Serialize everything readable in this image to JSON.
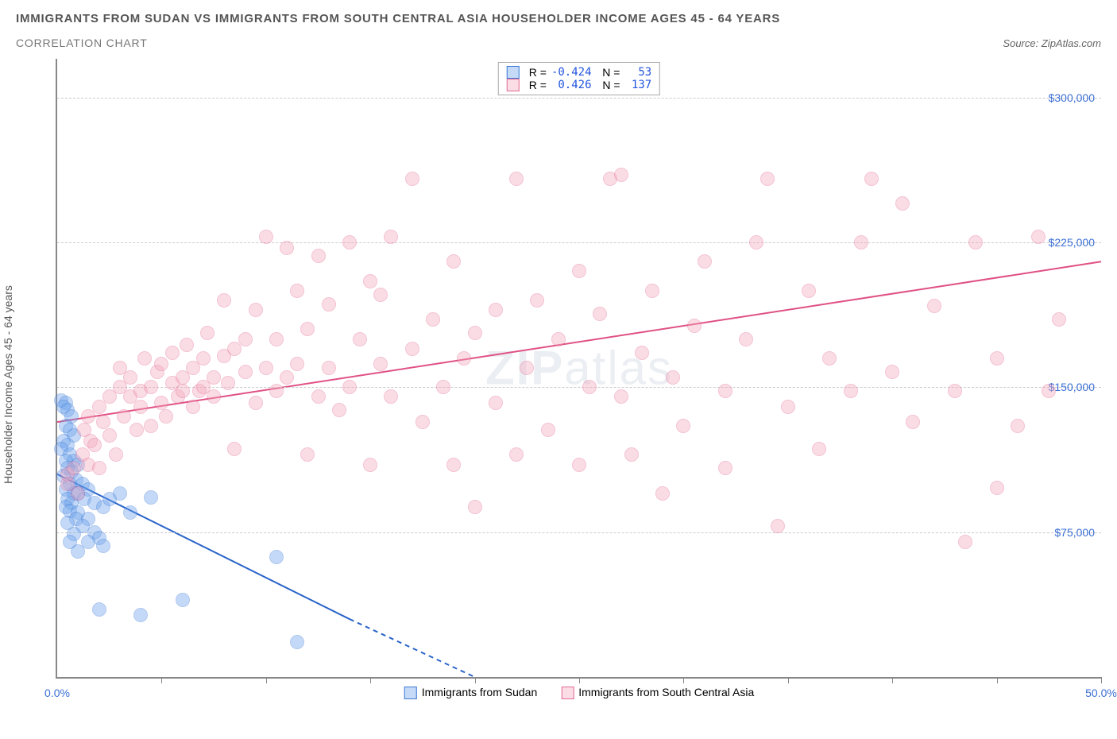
{
  "header": {
    "title": "IMMIGRANTS FROM SUDAN VS IMMIGRANTS FROM SOUTH CENTRAL ASIA HOUSEHOLDER INCOME AGES 45 - 64 YEARS",
    "subtitle": "CORRELATION CHART",
    "source_label": "Source:",
    "source_name": "ZipAtlas.com"
  },
  "watermark": {
    "bold": "ZIP",
    "thin": "atlas"
  },
  "chart": {
    "type": "scatter",
    "ylabel": "Householder Income Ages 45 - 64 years",
    "xlim": [
      0,
      50
    ],
    "ylim": [
      0,
      320000
    ],
    "x_min_label": "0.0%",
    "x_max_label": "50.0%",
    "xtick_positions": [
      5,
      10,
      15,
      20,
      25,
      30,
      35,
      40,
      45,
      50
    ],
    "ygrid": [
      {
        "v": 75000,
        "label": "$75,000"
      },
      {
        "v": 150000,
        "label": "$150,000"
      },
      {
        "v": 225000,
        "label": "$225,000"
      },
      {
        "v": 300000,
        "label": "$300,000"
      }
    ],
    "point_radius": 9,
    "point_opacity": 0.4,
    "point_stroke_opacity": 0.7,
    "grid_color": "#cccccc",
    "background_color": "#ffffff",
    "series": [
      {
        "name": "Immigrants from Sudan",
        "color_fill": "#6da3ec",
        "color_stroke": "#3b78d6",
        "R": "-0.424",
        "N": "53",
        "trend": {
          "x1": 0,
          "y1": 105000,
          "x2_solid": 14,
          "y2_solid": 30000,
          "x2_dash": 20,
          "y2_dash": 0,
          "color": "#2a64c9",
          "width": 2
        },
        "points": [
          [
            0.2,
            143000
          ],
          [
            0.4,
            142000
          ],
          [
            0.3,
            140000
          ],
          [
            0.5,
            138000
          ],
          [
            0.7,
            135000
          ],
          [
            0.4,
            130000
          ],
          [
            0.6,
            128000
          ],
          [
            0.8,
            125000
          ],
          [
            0.3,
            122000
          ],
          [
            0.5,
            120000
          ],
          [
            0.2,
            118000
          ],
          [
            0.6,
            115000
          ],
          [
            0.8,
            112000
          ],
          [
            0.4,
            112000
          ],
          [
            1.0,
            110000
          ],
          [
            0.5,
            108000
          ],
          [
            0.7,
            106000
          ],
          [
            0.3,
            104000
          ],
          [
            0.9,
            102000
          ],
          [
            0.6,
            100000
          ],
          [
            1.2,
            100000
          ],
          [
            0.4,
            97000
          ],
          [
            0.8,
            95000
          ],
          [
            1.0,
            95000
          ],
          [
            1.5,
            97000
          ],
          [
            0.5,
            92000
          ],
          [
            0.7,
            90000
          ],
          [
            1.3,
            92000
          ],
          [
            1.8,
            90000
          ],
          [
            0.4,
            88000
          ],
          [
            0.6,
            86000
          ],
          [
            1.0,
            85000
          ],
          [
            0.9,
            82000
          ],
          [
            1.5,
            82000
          ],
          [
            2.2,
            88000
          ],
          [
            2.5,
            92000
          ],
          [
            0.5,
            80000
          ],
          [
            1.2,
            78000
          ],
          [
            1.8,
            75000
          ],
          [
            2.0,
            72000
          ],
          [
            0.8,
            74000
          ],
          [
            1.5,
            70000
          ],
          [
            0.6,
            70000
          ],
          [
            2.2,
            68000
          ],
          [
            3.0,
            95000
          ],
          [
            3.5,
            85000
          ],
          [
            4.5,
            93000
          ],
          [
            1.0,
            65000
          ],
          [
            4.0,
            32000
          ],
          [
            2.0,
            35000
          ],
          [
            6.0,
            40000
          ],
          [
            10.5,
            62000
          ],
          [
            11.5,
            18000
          ]
        ]
      },
      {
        "name": "Immigrants from South Central Asia",
        "color_fill": "#f4a9be",
        "color_stroke": "#e36a94",
        "R": "0.426",
        "N": "137",
        "trend": {
          "x1": 0,
          "y1": 132000,
          "x2_solid": 50,
          "y2_solid": 215000,
          "color": "#e05084",
          "width": 2
        },
        "points": [
          [
            0.5,
            100000
          ],
          [
            0.5,
            105000
          ],
          [
            0.8,
            108000
          ],
          [
            1.0,
            95000
          ],
          [
            1.2,
            115000
          ],
          [
            1.3,
            128000
          ],
          [
            1.5,
            110000
          ],
          [
            1.5,
            135000
          ],
          [
            1.6,
            122000
          ],
          [
            1.8,
            120000
          ],
          [
            2.0,
            140000
          ],
          [
            2.0,
            108000
          ],
          [
            2.2,
            132000
          ],
          [
            2.5,
            145000
          ],
          [
            2.5,
            125000
          ],
          [
            2.8,
            115000
          ],
          [
            3.0,
            150000
          ],
          [
            3.0,
            160000
          ],
          [
            3.2,
            135000
          ],
          [
            3.5,
            145000
          ],
          [
            3.5,
            155000
          ],
          [
            3.8,
            128000
          ],
          [
            4.0,
            148000
          ],
          [
            4.0,
            140000
          ],
          [
            4.2,
            165000
          ],
          [
            4.5,
            130000
          ],
          [
            4.5,
            150000
          ],
          [
            4.8,
            158000
          ],
          [
            5.0,
            162000
          ],
          [
            5.0,
            142000
          ],
          [
            5.2,
            135000
          ],
          [
            5.5,
            152000
          ],
          [
            5.5,
            168000
          ],
          [
            5.8,
            145000
          ],
          [
            6.0,
            155000
          ],
          [
            6.0,
            148000
          ],
          [
            6.2,
            172000
          ],
          [
            6.5,
            140000
          ],
          [
            6.5,
            160000
          ],
          [
            6.8,
            148000
          ],
          [
            7.0,
            165000
          ],
          [
            7.0,
            150000
          ],
          [
            7.2,
            178000
          ],
          [
            7.5,
            155000
          ],
          [
            7.5,
            145000
          ],
          [
            8.0,
            166000
          ],
          [
            8.0,
            195000
          ],
          [
            8.2,
            152000
          ],
          [
            8.5,
            118000
          ],
          [
            8.5,
            170000
          ],
          [
            9.0,
            158000
          ],
          [
            9.0,
            175000
          ],
          [
            9.5,
            142000
          ],
          [
            9.5,
            190000
          ],
          [
            10.0,
            228000
          ],
          [
            10.0,
            160000
          ],
          [
            10.5,
            148000
          ],
          [
            10.5,
            175000
          ],
          [
            11.0,
            222000
          ],
          [
            11.0,
            155000
          ],
          [
            11.5,
            162000
          ],
          [
            11.5,
            200000
          ],
          [
            12.0,
            115000
          ],
          [
            12.0,
            180000
          ],
          [
            12.5,
            145000
          ],
          [
            12.5,
            218000
          ],
          [
            13.0,
            160000
          ],
          [
            13.0,
            193000
          ],
          [
            13.5,
            138000
          ],
          [
            14.0,
            225000
          ],
          [
            14.0,
            150000
          ],
          [
            14.5,
            175000
          ],
          [
            15.0,
            205000
          ],
          [
            15.0,
            110000
          ],
          [
            15.5,
            162000
          ],
          [
            15.5,
            198000
          ],
          [
            16.0,
            145000
          ],
          [
            16.0,
            228000
          ],
          [
            17.0,
            170000
          ],
          [
            17.0,
            258000
          ],
          [
            17.5,
            132000
          ],
          [
            18.0,
            185000
          ],
          [
            18.5,
            150000
          ],
          [
            19.0,
            215000
          ],
          [
            19.0,
            110000
          ],
          [
            19.5,
            165000
          ],
          [
            20.0,
            178000
          ],
          [
            20.0,
            88000
          ],
          [
            21.0,
            190000
          ],
          [
            21.0,
            142000
          ],
          [
            22.0,
            115000
          ],
          [
            22.0,
            258000
          ],
          [
            22.5,
            160000
          ],
          [
            23.0,
            195000
          ],
          [
            23.5,
            128000
          ],
          [
            24.0,
            175000
          ],
          [
            25.0,
            210000
          ],
          [
            25.0,
            110000
          ],
          [
            25.5,
            150000
          ],
          [
            26.0,
            188000
          ],
          [
            26.5,
            258000
          ],
          [
            27.0,
            260000
          ],
          [
            27.0,
            145000
          ],
          [
            27.5,
            115000
          ],
          [
            28.0,
            168000
          ],
          [
            28.5,
            200000
          ],
          [
            29.0,
            95000
          ],
          [
            29.5,
            155000
          ],
          [
            30.0,
            130000
          ],
          [
            30.5,
            182000
          ],
          [
            31.0,
            215000
          ],
          [
            32.0,
            148000
          ],
          [
            32.0,
            108000
          ],
          [
            33.0,
            175000
          ],
          [
            33.5,
            225000
          ],
          [
            34.0,
            258000
          ],
          [
            34.5,
            78000
          ],
          [
            35.0,
            140000
          ],
          [
            36.0,
            200000
          ],
          [
            36.5,
            118000
          ],
          [
            37.0,
            165000
          ],
          [
            38.0,
            148000
          ],
          [
            38.5,
            225000
          ],
          [
            39.0,
            258000
          ],
          [
            40.0,
            158000
          ],
          [
            40.5,
            245000
          ],
          [
            41.0,
            132000
          ],
          [
            42.0,
            192000
          ],
          [
            43.0,
            148000
          ],
          [
            43.5,
            70000
          ],
          [
            44.0,
            225000
          ],
          [
            45.0,
            98000
          ],
          [
            45.0,
            165000
          ],
          [
            46.0,
            130000
          ],
          [
            47.0,
            228000
          ],
          [
            47.5,
            148000
          ],
          [
            48.0,
            185000
          ]
        ]
      }
    ],
    "bottom_legend": {
      "s1": "Immigrants from Sudan",
      "s2": "Immigrants from South Central Asia"
    }
  }
}
